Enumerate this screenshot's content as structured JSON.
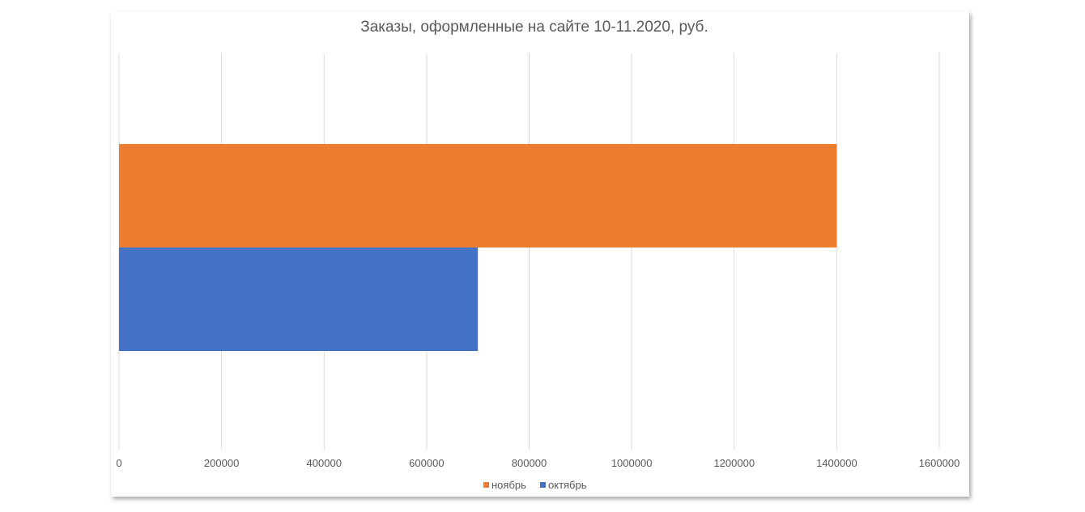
{
  "chart_data": {
    "type": "bar",
    "orientation": "horizontal",
    "title": "Заказы, оформленные на сайте 10-11.2020, руб.",
    "xlabel": "",
    "ylabel": "",
    "xlim": [
      0,
      1600000
    ],
    "x_ticks": [
      "0",
      "200000",
      "400000",
      "600000",
      "800000",
      "1000000",
      "1200000",
      "1400000",
      "1600000"
    ],
    "grid": true,
    "legend_position": "bottom",
    "categories": [
      ""
    ],
    "series": [
      {
        "name": "октябрь",
        "values": [
          700000
        ],
        "color": "#4472C4"
      },
      {
        "name": "ноябрь",
        "values": [
          1400000
        ],
        "color": "#ED7D31"
      }
    ],
    "legend_order": [
      "ноябрь",
      "октябрь"
    ]
  }
}
